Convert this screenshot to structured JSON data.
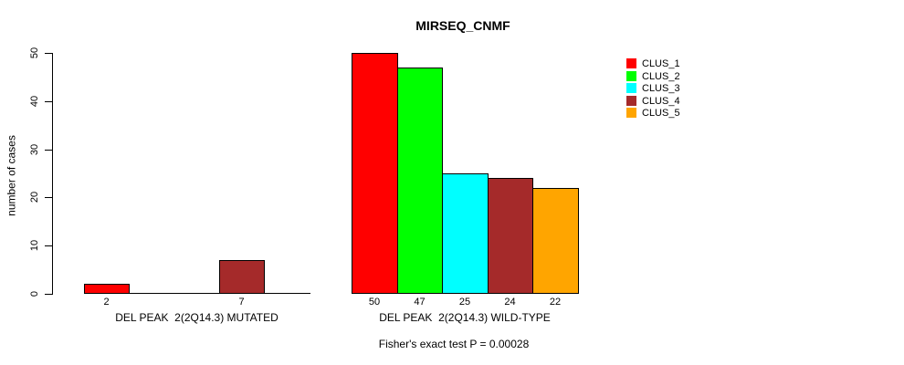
{
  "chart_data": {
    "type": "bar",
    "title": "MIRSEQ_CNMF",
    "ylabel": "number of cases",
    "xlabel": "",
    "ylim": [
      0,
      50
    ],
    "yticks": [
      0,
      10,
      20,
      30,
      40,
      50
    ],
    "grid": false,
    "legend_position": "right",
    "categories": [
      "DEL PEAK  2(2Q14.3) MUTATED",
      "DEL PEAK  2(2Q14.3) WILD-TYPE"
    ],
    "series": [
      {
        "name": "CLUS_1",
        "color": "#FF0000",
        "values": [
          2,
          50
        ]
      },
      {
        "name": "CLUS_2",
        "color": "#00FF00",
        "values": [
          0,
          47
        ]
      },
      {
        "name": "CLUS_3",
        "color": "#00FFFF",
        "values": [
          0,
          25
        ]
      },
      {
        "name": "CLUS_4",
        "color": "#A52A2A",
        "values": [
          7,
          24
        ]
      },
      {
        "name": "CLUS_5",
        "color": "#FFA500",
        "values": [
          0,
          22
        ]
      }
    ],
    "bar_value_labels": [
      [
        2,
        null,
        null,
        7,
        null
      ],
      [
        50,
        47,
        25,
        24,
        22
      ]
    ],
    "footnote": "Fisher's exact test P = 0.00028",
    "text_color": "#000000",
    "background_color": "#FFFFFF"
  }
}
